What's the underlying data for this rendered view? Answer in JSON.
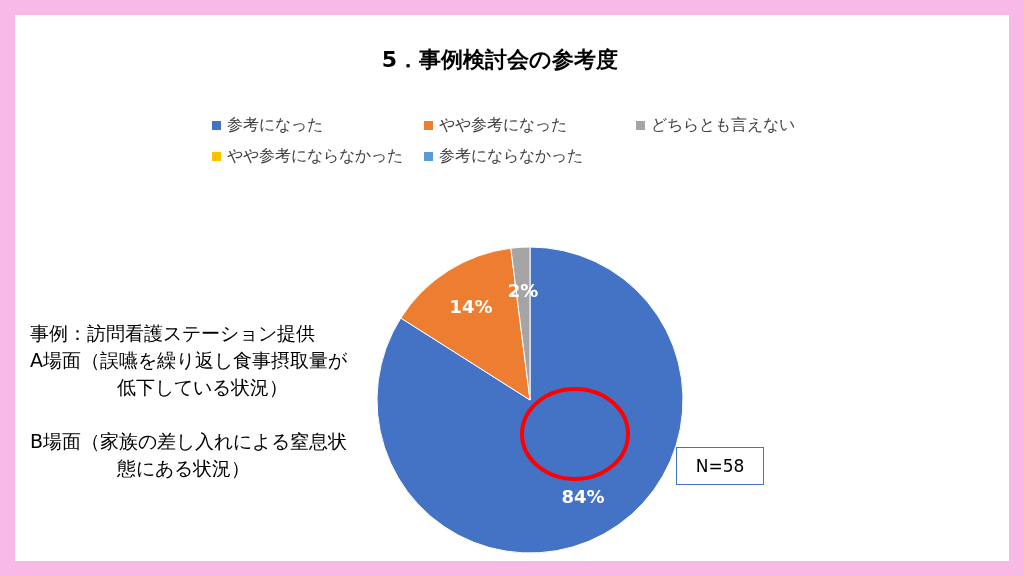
{
  "chart_data": {
    "type": "pie",
    "title": "5．事例検討会の参考度",
    "categories": [
      "参考になった",
      "やや参考になった",
      "どちらとも言えない",
      "やや参考にならなかった",
      "参考にならなかった"
    ],
    "values": [
      84,
      14,
      2,
      0,
      0
    ],
    "colors": [
      "#4472c4",
      "#ed7d31",
      "#a5a5a5",
      "#ffc000",
      "#5b9bd5"
    ],
    "value_labels": [
      "84%",
      "14%",
      "2%",
      null,
      null
    ],
    "legend": "top",
    "annotations": [
      "事例：訪問看護ステーション提供",
      "A場面（誤嚥を繰り返し食事摂取量が低下している状況）",
      "B場面（家族の差し入れによる窒息状態にある状況）",
      "N=58"
    ]
  }
}
